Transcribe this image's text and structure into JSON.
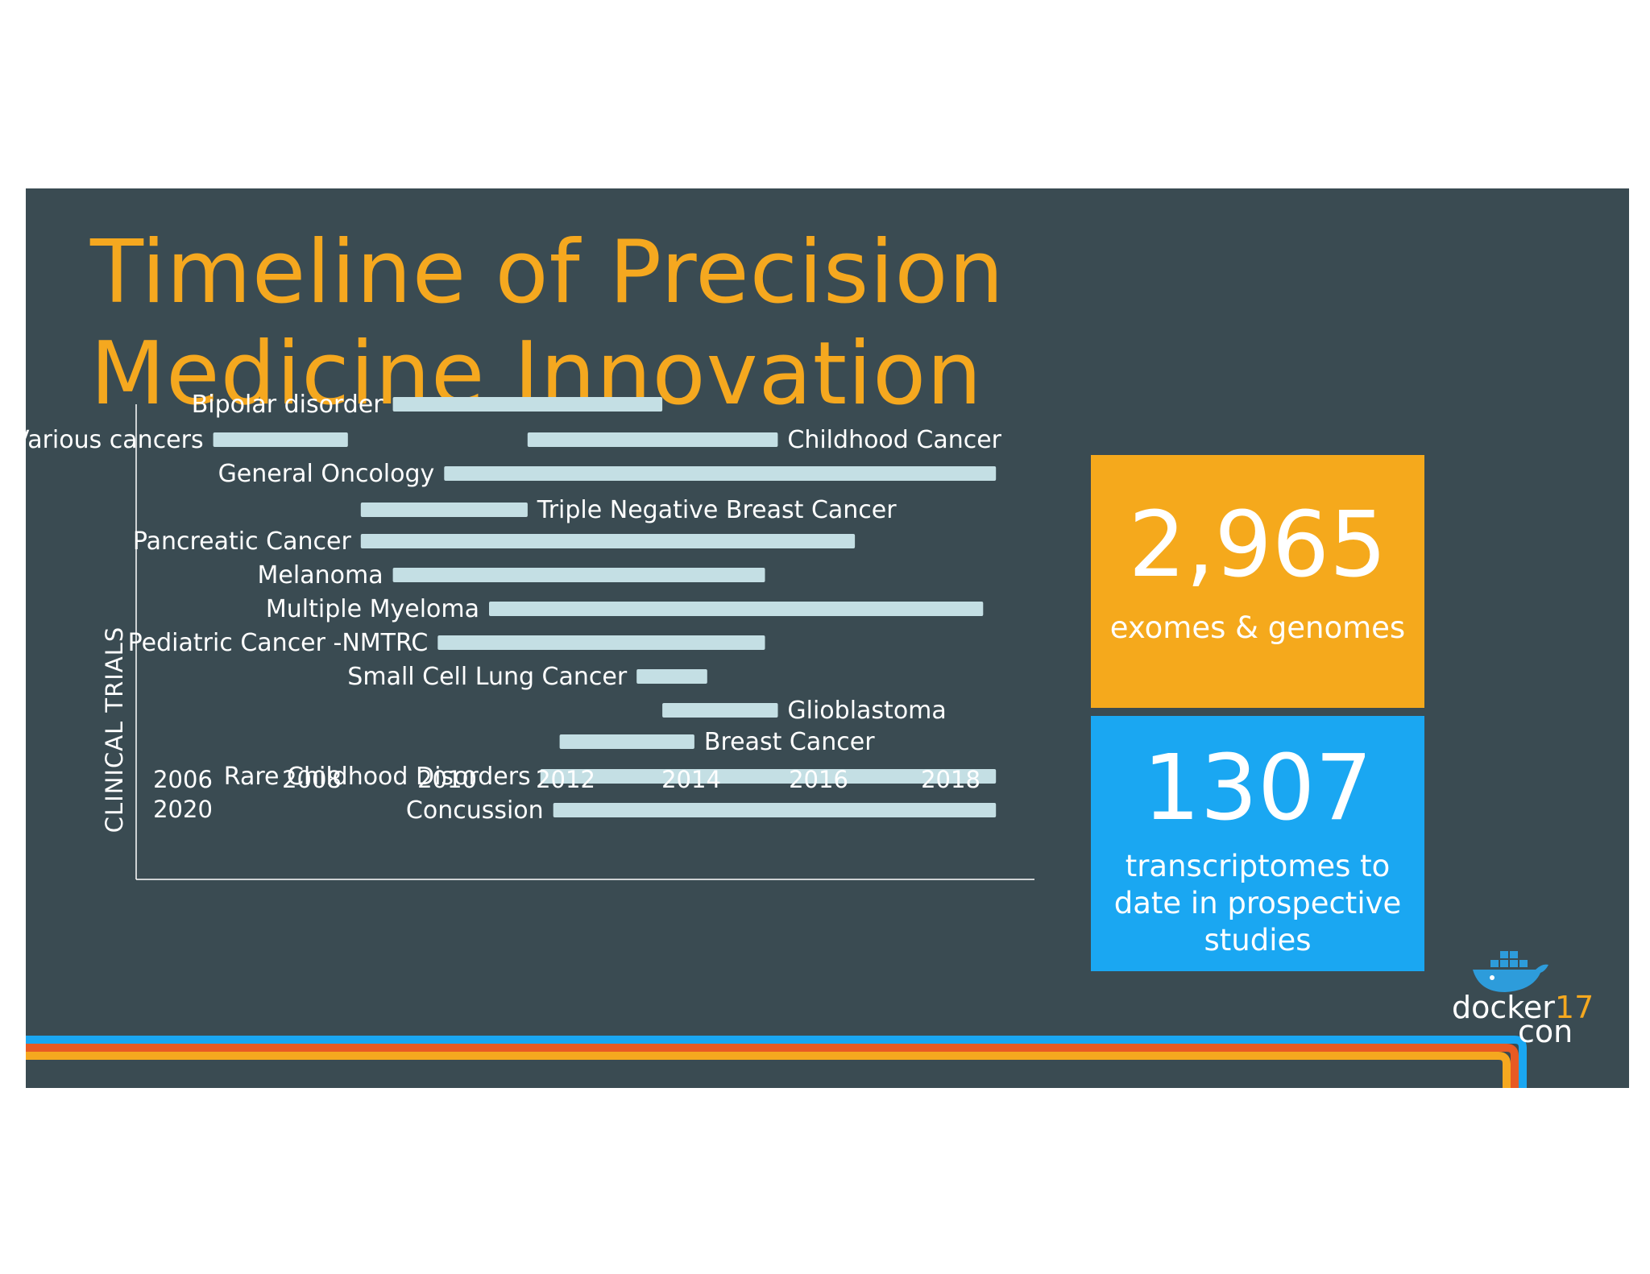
{
  "slide": {
    "title_lines": [
      "Timeline of Precision",
      "Medicine Innovation"
    ]
  },
  "chart_data": {
    "type": "bar",
    "orientation": "horizontal-timeline",
    "ylabel": "CLINICAL TRIALS",
    "xlabel": "",
    "x_tick_labels": [
      "2006",
      "2008",
      "2010",
      "2012",
      "2014",
      "2016",
      "2018",
      "2020"
    ],
    "xlim": [
      2006,
      2020
    ],
    "grid": false,
    "bars": [
      {
        "label": "Bipolar disorder",
        "start": 2010.0,
        "end": 2014.2
      },
      {
        "label": "Various cancers",
        "start": 2007.2,
        "end": 2009.3
      },
      {
        "label": "Childhood Cancer",
        "start": 2012.1,
        "end": 2016.0
      },
      {
        "label": "General Oncology",
        "start": 2010.8,
        "end": 2019.4
      },
      {
        "label": "Triple Negative Breast Cancer",
        "start": 2009.5,
        "end": 2012.1
      },
      {
        "label": "Pancreatic Cancer",
        "start": 2009.5,
        "end": 2017.2
      },
      {
        "label": "Melanoma",
        "start": 2010.0,
        "end": 2015.8
      },
      {
        "label": "Multiple Myeloma",
        "start": 2011.5,
        "end": 2019.2
      },
      {
        "label": "Pediatric Cancer -NMTRC",
        "start": 2010.7,
        "end": 2015.8
      },
      {
        "label": "Small Cell Lung Cancer",
        "start": 2013.8,
        "end": 2014.9
      },
      {
        "label": "Glioblastoma",
        "start": 2014.2,
        "end": 2016.0
      },
      {
        "label": "Breast Cancer",
        "start": 2012.6,
        "end": 2014.7
      },
      {
        "label": "Rare Childhood Disorders",
        "start": 2012.3,
        "end": 2019.4
      },
      {
        "label": "Concussion",
        "start": 2012.5,
        "end": 2019.4
      }
    ],
    "colors": {
      "bar": "#c4dfe4",
      "axis": "#ffffff"
    }
  },
  "stats": [
    {
      "value": "2,965",
      "text": "exomes & genomes",
      "color": "#f5a91c"
    },
    {
      "value": "1307",
      "text": "transcriptomes to date in prospective studies",
      "color": "#1aa7f2"
    }
  ],
  "logo": {
    "word": "docker",
    "number": "17",
    "suffix": "con"
  },
  "colors": {
    "background": "#3a4b52",
    "title": "#f5a81f",
    "stripe_blue": "#1aa7f2",
    "stripe_orange": "#f5a81f",
    "stripe_red": "#e85a24"
  }
}
